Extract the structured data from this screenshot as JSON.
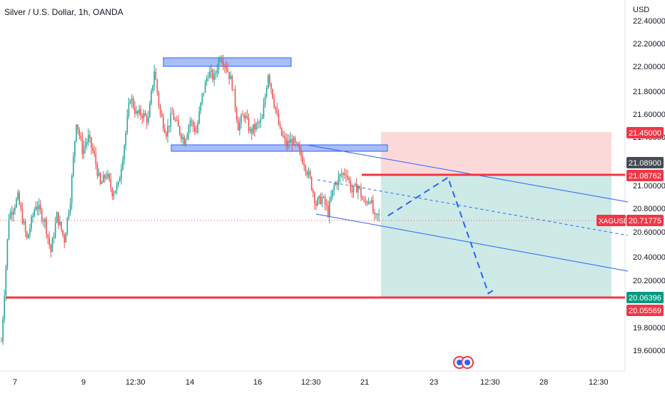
{
  "header": {
    "title": "Silver / U.S. Dollar, 1h, OANDA",
    "currency": "USD"
  },
  "price_axis": {
    "ticks": [
      "22.40000",
      "22.20000",
      "22.00000",
      "21.80000",
      "21.60000",
      "21.40000",
      "21.00000",
      "20.80000",
      "20.60000",
      "20.40000",
      "20.20000",
      "19.80000",
      "19.60000"
    ]
  },
  "time_axis": {
    "labels": [
      "7",
      "9",
      "12:30",
      "14",
      "16",
      "12:30",
      "21",
      "23",
      "12:30",
      "28",
      "12:30"
    ]
  },
  "price_labels": {
    "stop": "21.45000",
    "high_marker": "21.08900",
    "entry": "21.08762",
    "symbol": "XAGUSD",
    "last": "20.71775",
    "target": "20.06396",
    "support": "20.05569"
  },
  "colors": {
    "up": "#26a69a",
    "down": "#ef5350",
    "zone_stroke": "#2962ff",
    "zone_fill": "#a9bdf7",
    "red_line": "#f23645",
    "risk_fill": "#fcd9d9",
    "reward_fill": "#cdeae7",
    "channel": "#2962ff",
    "label_grey": "#454a54",
    "label_green": "#089981"
  },
  "chart_data": {
    "type": "candlestick",
    "title": "Silver / U.S. Dollar, 1h, OANDA",
    "y_unit": "USD",
    "ylim": [
      19.5,
      22.45
    ],
    "x_tick_labels": [
      "7",
      "9",
      "12:30",
      "14",
      "16",
      "12:30",
      "21",
      "23",
      "12:30",
      "28",
      "12:30"
    ],
    "anchors": [
      {
        "t": 0,
        "p": 19.7
      },
      {
        "t": 5,
        "p": 20.75
      },
      {
        "t": 11,
        "p": 20.9
      },
      {
        "t": 17,
        "p": 20.55
      },
      {
        "t": 23,
        "p": 20.85
      },
      {
        "t": 29,
        "p": 20.7
      },
      {
        "t": 33,
        "p": 20.45
      },
      {
        "t": 37,
        "p": 20.75
      },
      {
        "t": 42,
        "p": 20.55
      },
      {
        "t": 46,
        "p": 20.9
      },
      {
        "t": 50,
        "p": 21.55
      },
      {
        "t": 54,
        "p": 21.3
      },
      {
        "t": 58,
        "p": 21.4
      },
      {
        "t": 62,
        "p": 21.25
      },
      {
        "t": 66,
        "p": 21.0
      },
      {
        "t": 70,
        "p": 21.1
      },
      {
        "t": 74,
        "p": 20.95
      },
      {
        "t": 78,
        "p": 21.0
      },
      {
        "t": 82,
        "p": 21.35
      },
      {
        "t": 86,
        "p": 21.75
      },
      {
        "t": 90,
        "p": 21.6
      },
      {
        "t": 94,
        "p": 21.6
      },
      {
        "t": 98,
        "p": 21.55
      },
      {
        "t": 102,
        "p": 21.97
      },
      {
        "t": 106,
        "p": 21.6
      },
      {
        "t": 110,
        "p": 21.45
      },
      {
        "t": 114,
        "p": 21.6
      },
      {
        "t": 118,
        "p": 21.48
      },
      {
        "t": 122,
        "p": 21.38
      },
      {
        "t": 126,
        "p": 21.55
      },
      {
        "t": 130,
        "p": 21.45
      },
      {
        "t": 134,
        "p": 21.75
      },
      {
        "t": 138,
        "p": 21.95
      },
      {
        "t": 142,
        "p": 21.9
      },
      {
        "t": 146,
        "p": 22.1
      },
      {
        "t": 150,
        "p": 22.0
      },
      {
        "t": 154,
        "p": 21.85
      },
      {
        "t": 158,
        "p": 21.5
      },
      {
        "t": 162,
        "p": 21.6
      },
      {
        "t": 166,
        "p": 21.45
      },
      {
        "t": 170,
        "p": 21.5
      },
      {
        "t": 174,
        "p": 21.55
      },
      {
        "t": 178,
        "p": 21.95
      },
      {
        "t": 182,
        "p": 21.7
      },
      {
        "t": 186,
        "p": 21.45
      },
      {
        "t": 190,
        "p": 21.35
      },
      {
        "t": 194,
        "p": 21.38
      },
      {
        "t": 198,
        "p": 21.3
      },
      {
        "t": 202,
        "p": 21.2
      },
      {
        "t": 206,
        "p": 21.05
      },
      {
        "t": 210,
        "p": 20.85
      },
      {
        "t": 214,
        "p": 20.9
      },
      {
        "t": 218,
        "p": 20.78
      },
      {
        "t": 222,
        "p": 21.0
      },
      {
        "t": 226,
        "p": 21.08
      },
      {
        "t": 230,
        "p": 21.12
      },
      {
        "t": 234,
        "p": 20.95
      },
      {
        "t": 238,
        "p": 21.0
      },
      {
        "t": 242,
        "p": 20.85
      },
      {
        "t": 246,
        "p": 20.9
      },
      {
        "t": 249,
        "p": 20.72
      },
      {
        "t": 252,
        "p": 20.75
      }
    ],
    "support_level": 20.05569,
    "position": {
      "entry": 21.08762,
      "stop": 21.45,
      "target": 20.06396
    },
    "projection_path": [
      [
        258,
        20.75
      ],
      [
        298,
        21.07
      ],
      [
        325,
        20.1
      ],
      [
        330,
        20.14
      ]
    ]
  }
}
